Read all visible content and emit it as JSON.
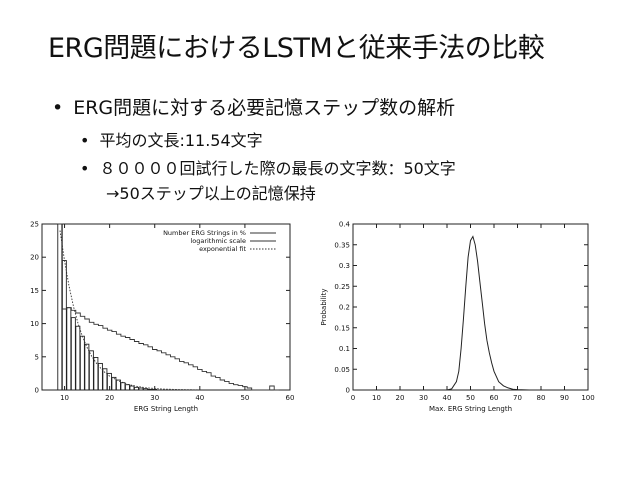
{
  "slide": {
    "title": "ERG問題におけるLSTMと従来手法の比較",
    "bullet1": "ERG問題に対する必要記憶ステップ数の解析",
    "bullet2": "平均の文長:11.54文字",
    "bullet3": "８００００回試行した際の最長の文字数：50文字",
    "bullet4": "→50ステップ以上の記憶保持",
    "bullet_mark": "•"
  },
  "chart_data": [
    {
      "type": "bar",
      "xlabel": "ERG String Length",
      "ylabel": "",
      "xlim": [
        5,
        60
      ],
      "ylim": [
        0,
        25
      ],
      "xticks": [
        10,
        20,
        30,
        40,
        50,
        60
      ],
      "yticks": [
        0,
        5,
        10,
        15,
        20,
        25
      ],
      "grid": false,
      "legend_position": "top-right",
      "series": [
        {
          "name": "Number ERG Strings in %",
          "x": [
            9,
            10,
            11,
            12,
            13,
            14,
            15,
            16,
            17,
            18,
            19,
            20,
            21,
            22,
            23,
            24,
            25,
            26,
            27,
            28,
            29,
            30
          ],
          "values": [
            25,
            19.5,
            12.4,
            10.9,
            9.6,
            8.1,
            6.9,
            5.9,
            4.9,
            4.0,
            3.2,
            2.5,
            1.9,
            1.5,
            1.1,
            0.8,
            0.6,
            0.4,
            0.3,
            0.2,
            0.1,
            0.1
          ]
        },
        {
          "name": "logarithmic scale",
          "x": [
            9,
            10,
            11,
            12,
            13,
            14,
            15,
            16,
            17,
            18,
            19,
            20,
            21,
            22,
            23,
            24,
            25,
            26,
            27,
            28,
            29,
            30,
            31,
            32,
            33,
            34,
            35,
            36,
            37,
            38,
            39,
            40,
            41,
            42,
            43,
            44,
            45,
            46,
            47,
            48,
            49,
            50,
            51,
            52,
            53,
            54,
            55,
            56,
            57
          ],
          "values": [
            25,
            12.2,
            12.4,
            12.0,
            11.6,
            11.1,
            10.7,
            10.2,
            9.9,
            9.7,
            9.3,
            9.0,
            8.8,
            8.4,
            8.1,
            7.9,
            7.6,
            7.3,
            7.0,
            6.8,
            6.5,
            6.1,
            5.9,
            5.6,
            5.3,
            5.0,
            4.7,
            4.3,
            4.1,
            3.8,
            3.5,
            3.1,
            2.8,
            2.6,
            2.1,
            1.9,
            1.5,
            1.3,
            1.0,
            0.8,
            0.7,
            0.5,
            0.3,
            0,
            0,
            0,
            0,
            0.6,
            0
          ]
        },
        {
          "name": "exponential fit",
          "x": [
            9,
            10,
            11,
            12,
            13,
            14,
            15,
            16,
            17,
            18,
            19,
            20,
            22,
            24,
            26,
            28,
            30,
            32,
            35,
            40
          ],
          "values": [
            24,
            19.5,
            15.6,
            12.5,
            10.0,
            8.0,
            6.4,
            5.1,
            4.1,
            3.3,
            2.6,
            2.1,
            1.35,
            0.86,
            0.55,
            0.35,
            0.22,
            0.14,
            0.07,
            0.02
          ]
        }
      ]
    },
    {
      "type": "line",
      "xlabel": "Max. ERG String Length",
      "ylabel": "Probability",
      "xlim": [
        0,
        100
      ],
      "ylim": [
        0,
        0.4
      ],
      "xticks": [
        0,
        10,
        20,
        30,
        40,
        50,
        60,
        70,
        80,
        90,
        100
      ],
      "yticks": [
        0,
        0.05,
        0.1,
        0.15,
        0.2,
        0.25,
        0.3,
        0.35,
        0.4
      ],
      "grid": false,
      "series": [
        {
          "x": [
            0,
            35,
            40,
            42,
            44,
            45,
            46,
            47,
            48,
            49,
            50,
            51,
            52,
            53,
            54,
            55,
            56,
            57,
            58,
            59,
            60,
            62,
            64,
            66,
            68,
            70,
            75,
            80,
            100
          ],
          "values": [
            0,
            0,
            0,
            0.003,
            0.02,
            0.045,
            0.1,
            0.17,
            0.25,
            0.32,
            0.36,
            0.37,
            0.35,
            0.31,
            0.26,
            0.21,
            0.16,
            0.12,
            0.09,
            0.065,
            0.045,
            0.02,
            0.01,
            0.005,
            0.002,
            0.001,
            0,
            0,
            0
          ]
        }
      ]
    }
  ]
}
